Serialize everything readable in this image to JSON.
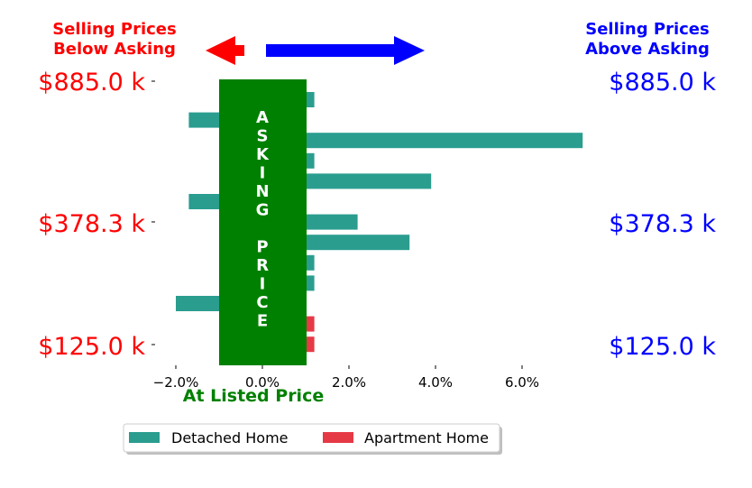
{
  "header": {
    "left_line1": "Selling Prices",
    "left_line2": "Below Asking",
    "right_line1": "Selling Prices",
    "right_line2": "Above Asking"
  },
  "price_labels": [
    "$885.0 k",
    "$378.3 k",
    "$125.0 k"
  ],
  "asking_label": "ASKING PRICE",
  "listed_label": "At Listed Price",
  "colors": {
    "below": "#ff0000",
    "above": "#0000ff",
    "asking_box": "#008000",
    "detached": "#2a9d8f",
    "apartment": "#e63946"
  },
  "chart_data": {
    "type": "bar",
    "orientation": "horizontal",
    "xlim": [
      -2.4,
      7.6
    ],
    "x_ticks": [
      -2,
      0,
      2,
      4,
      6
    ],
    "x_tick_labels": [
      "−2.0%",
      "0.0%",
      "2.0%",
      "4.0%",
      "6.0%"
    ],
    "y_tick_labels": [
      "$885.0 k",
      "$378.3 k",
      "$125.0 k"
    ],
    "series": [
      {
        "name": "Detached Home",
        "color": "#2a9d8f",
        "values": [
          1.2,
          -1.7,
          7.4,
          1.2,
          3.9,
          -1.7,
          2.2,
          3.4,
          1.2,
          1.2,
          -2.0,
          null,
          null
        ]
      },
      {
        "name": "Apartment Home",
        "color": "#e63946",
        "values": [
          null,
          null,
          null,
          null,
          null,
          null,
          null,
          null,
          null,
          null,
          null,
          1.2,
          1.2
        ]
      }
    ]
  },
  "legend": {
    "items": [
      {
        "label": "Detached Home",
        "color": "#2a9d8f"
      },
      {
        "label": "Apartment Home",
        "color": "#e63946"
      }
    ]
  }
}
